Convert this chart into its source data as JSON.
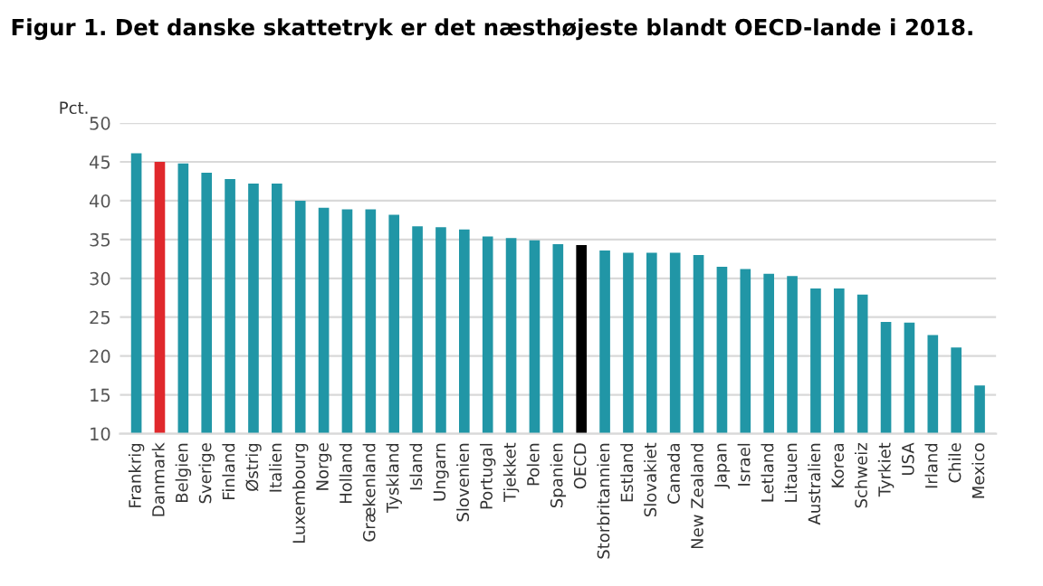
{
  "chart_data": {
    "type": "bar",
    "title": "Figur 1. Det danske skattetryk er det næsthøjeste blandt OECD-lande i 2018.",
    "ylabel": "Pct.",
    "categories": [
      "Frankrig",
      "Danmark",
      "Belgien",
      "Sverige",
      "Finland",
      "Østrig",
      "Italien",
      "Luxembourg",
      "Norge",
      "Holland",
      "Grækenland",
      "Tyskland",
      "Island",
      "Ungarn",
      "Slovenien",
      "Portugal",
      "Tjekket",
      "Polen",
      "Spanien",
      "OECD",
      "Storbritannien",
      "Estland",
      "Slovakiet",
      "Canada",
      "New Zealand",
      "Japan",
      "Israel",
      "Letland",
      "Litauen",
      "Australien",
      "Korea",
      "Schweiz",
      "Tyrkiet",
      "USA",
      "Irland",
      "Chile",
      "Mexico"
    ],
    "values": [
      46.1,
      45.0,
      44.8,
      43.6,
      42.8,
      42.2,
      42.2,
      40.0,
      39.1,
      38.9,
      38.9,
      38.2,
      36.7,
      36.6,
      36.3,
      35.4,
      35.2,
      34.9,
      34.4,
      34.3,
      33.6,
      33.3,
      33.3,
      33.3,
      33.0,
      31.5,
      31.2,
      30.6,
      30.3,
      28.7,
      28.7,
      27.9,
      24.4,
      24.3,
      22.7,
      21.1,
      16.2
    ],
    "colors": [
      "#2196a6",
      "#e0282c",
      "#2196a6",
      "#2196a6",
      "#2196a6",
      "#2196a6",
      "#2196a6",
      "#2196a6",
      "#2196a6",
      "#2196a6",
      "#2196a6",
      "#2196a6",
      "#2196a6",
      "#2196a6",
      "#2196a6",
      "#2196a6",
      "#2196a6",
      "#2196a6",
      "#2196a6",
      "#000000",
      "#2196a6",
      "#2196a6",
      "#2196a6",
      "#2196a6",
      "#2196a6",
      "#2196a6",
      "#2196a6",
      "#2196a6",
      "#2196a6",
      "#2196a6",
      "#2196a6",
      "#2196a6",
      "#2196a6",
      "#2196a6",
      "#2196a6",
      "#2196a6",
      "#2196a6"
    ],
    "ylim": [
      10,
      50
    ],
    "yticks": [
      10,
      15,
      20,
      25,
      30,
      35,
      40,
      45,
      50
    ],
    "grid": "y"
  }
}
